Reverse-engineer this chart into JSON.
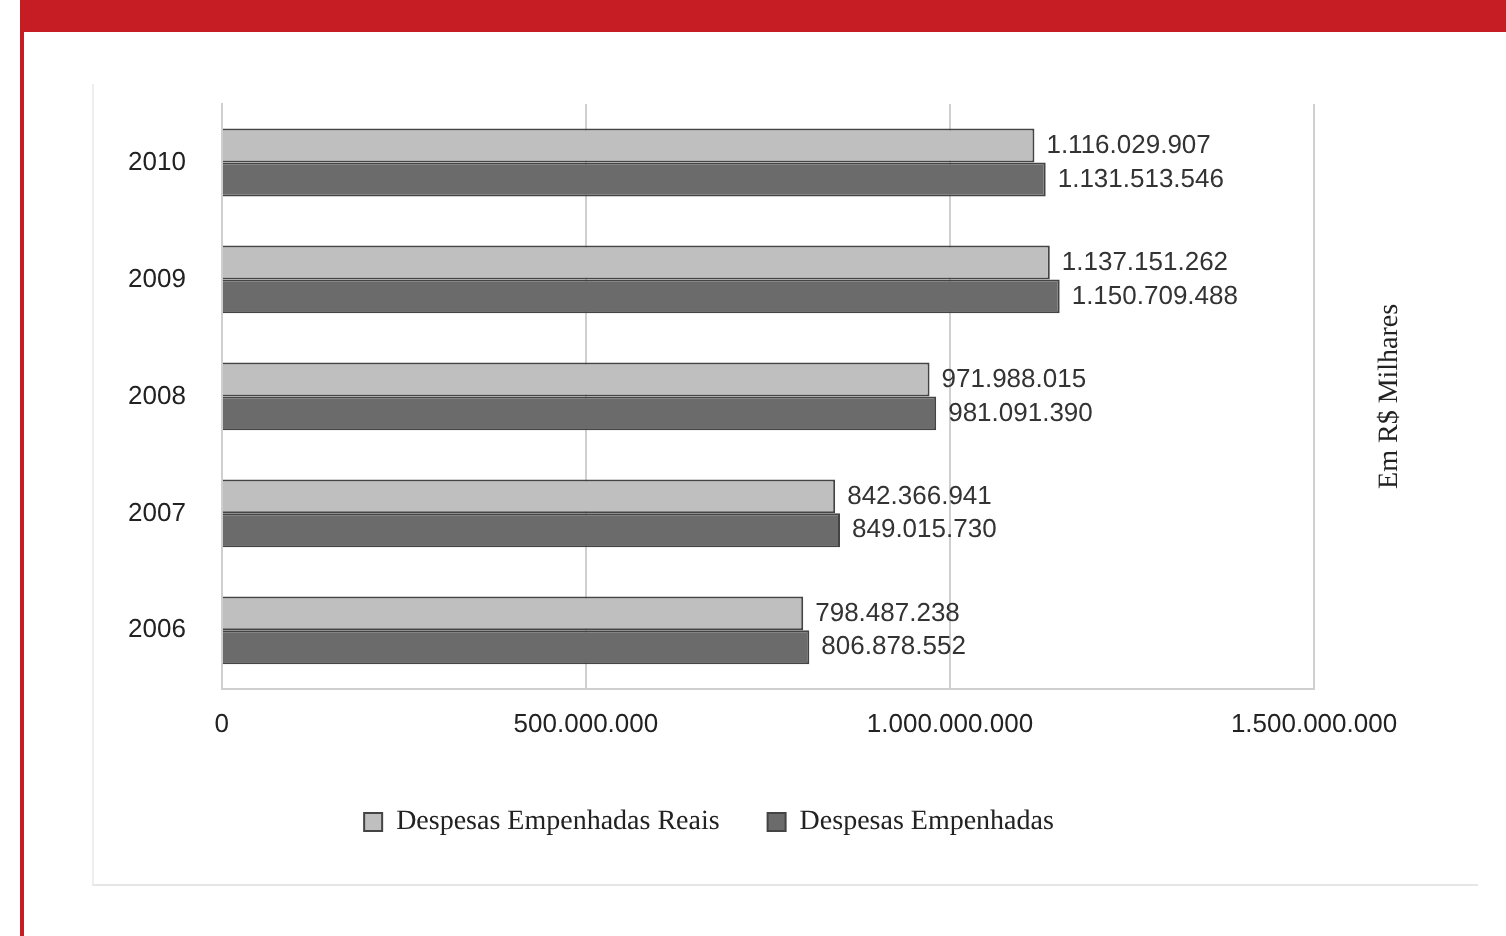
{
  "chart_data": {
    "type": "bar",
    "orientation": "horizontal",
    "categories": [
      "2010",
      "2009",
      "2008",
      "2007",
      "2006"
    ],
    "series": [
      {
        "name": "Despesas Empenhadas Reais",
        "color": "#bfbfbf",
        "values": [
          1116029907,
          1137151262,
          971988015,
          842366941,
          798487238
        ],
        "value_labels": [
          "1.116.029.907",
          "1.137.151.262",
          "971.988.015",
          "842.366.941",
          "798.487.238"
        ]
      },
      {
        "name": "Despesas Empenhadas",
        "color": "#6b6b6b",
        "values": [
          1131513546,
          1150709488,
          981091390,
          849015730,
          806878552
        ],
        "value_labels": [
          "1.131.513.546",
          "1.150.709.488",
          "981.091.390",
          "849.015.730",
          "806.878.552"
        ]
      }
    ],
    "xlim": [
      0,
      1500000000
    ],
    "xticks": [
      0,
      {
        "value": 500000000,
        "label": "500.000.000"
      },
      {
        "value": 1000000000,
        "label": "1.000.000.000"
      },
      {
        "value": 1500000000,
        "label": "1.500.000.000"
      }
    ],
    "grid": "x",
    "legend": "bottom",
    "annotations": [
      "Em R$ Milhares"
    ]
  }
}
